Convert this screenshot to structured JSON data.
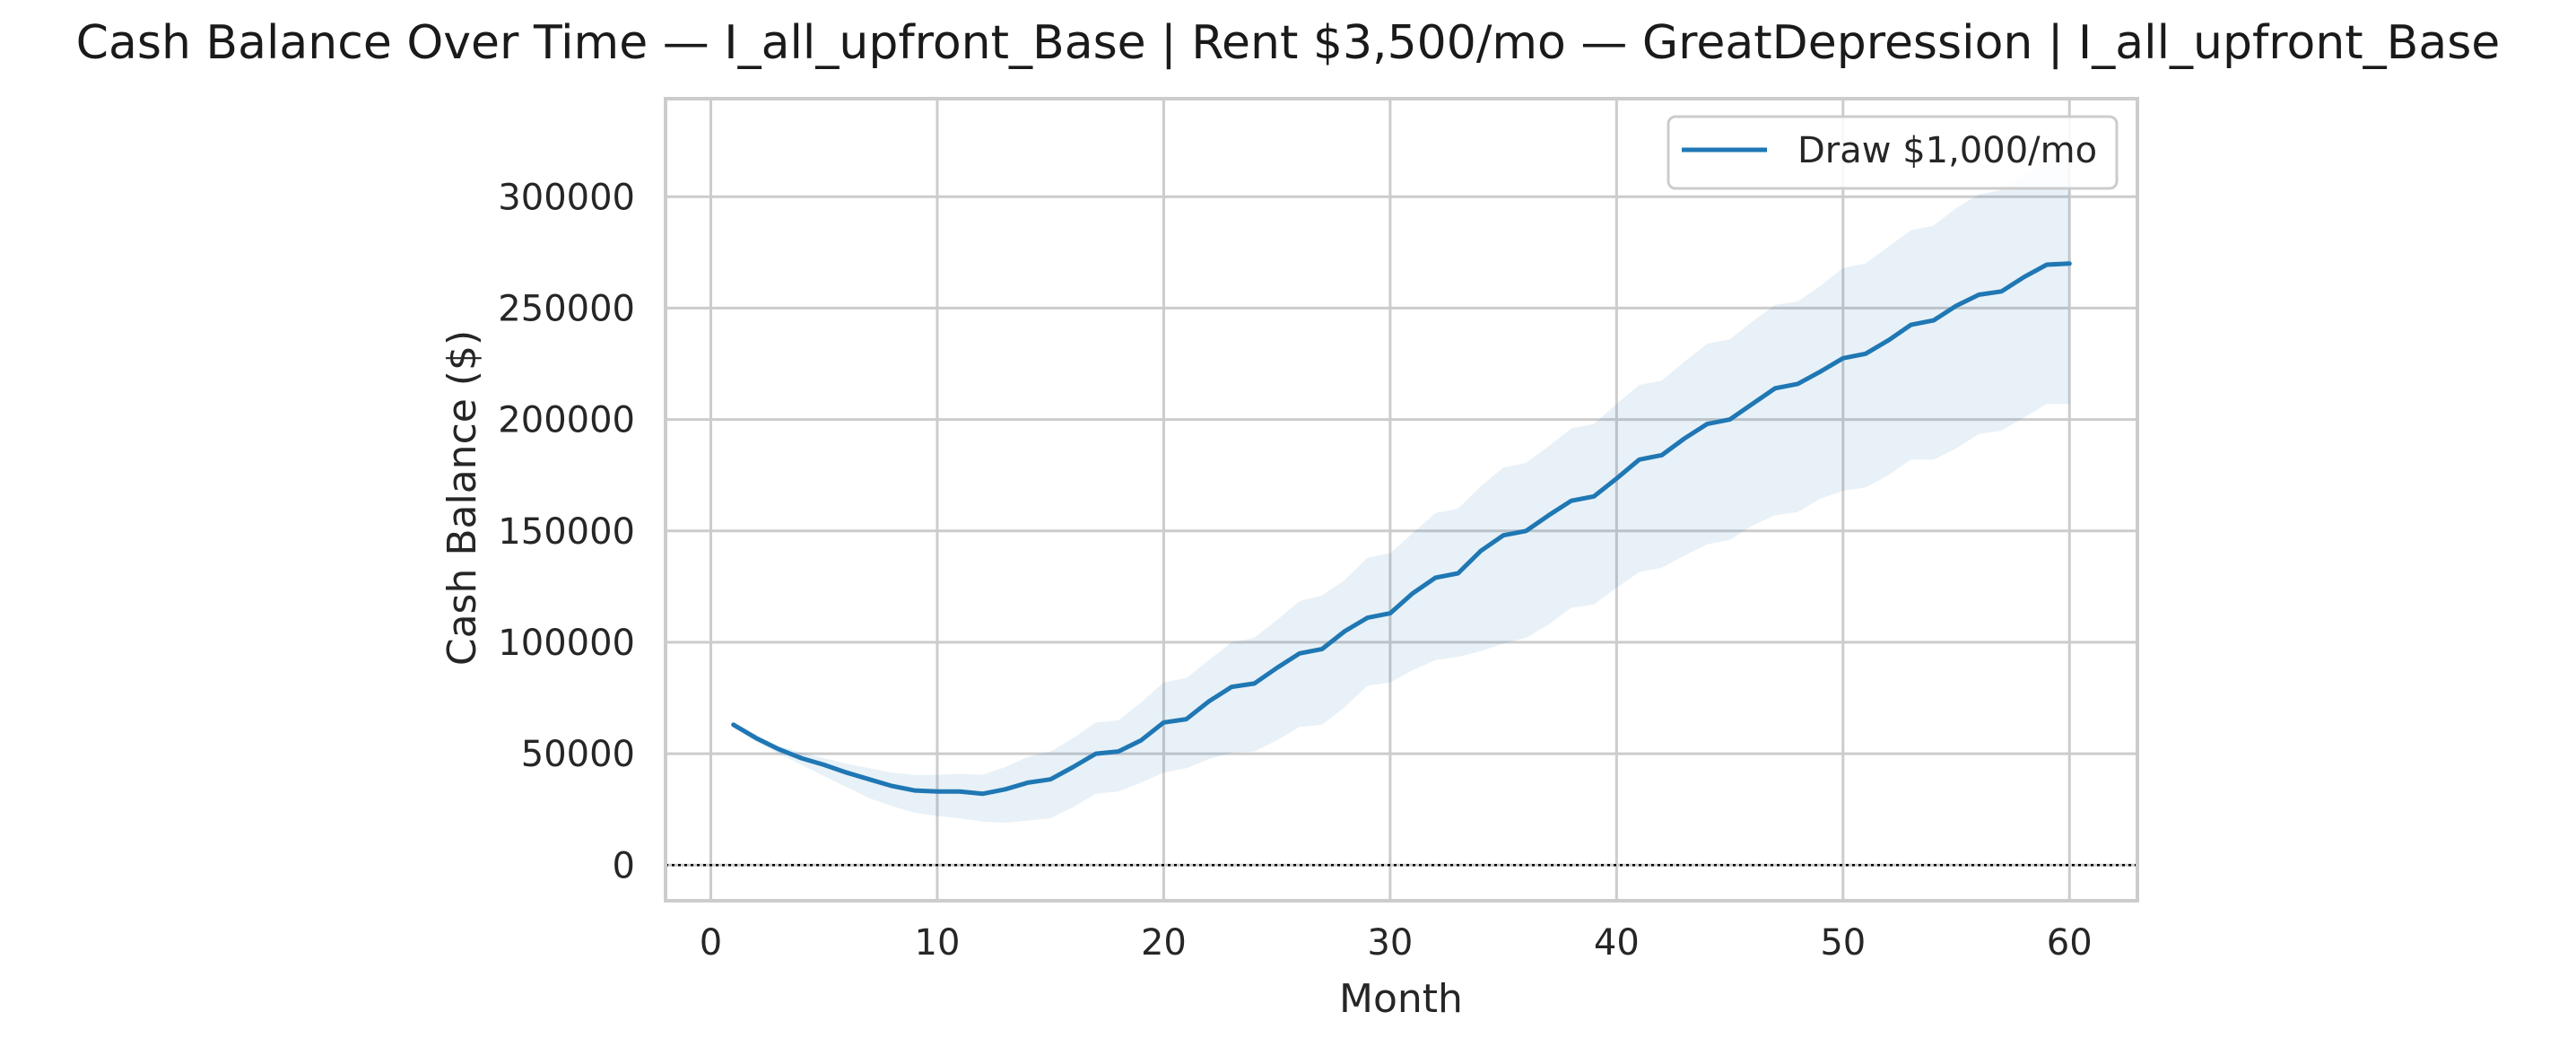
{
  "chart_data": {
    "type": "line",
    "title": "Cash Balance Over Time — I_all_upfront_Base | Rent $3,500/mo — GreatDepression | I_all_upfront_Base",
    "xlabel": "Month",
    "ylabel": "Cash Balance ($)",
    "xlim": [
      -2,
      63
    ],
    "ylim": [
      -16000,
      344000
    ],
    "xticks": [
      0,
      10,
      20,
      30,
      40,
      50,
      60
    ],
    "yticks": [
      0,
      50000,
      100000,
      150000,
      200000,
      250000,
      300000
    ],
    "grid": true,
    "legend_position": "top-right",
    "reference_line": {
      "y": 0,
      "style": "dotted",
      "color": "#000000"
    },
    "series": [
      {
        "name": "Draw $1,000/mo",
        "color": "#1f77b4",
        "band_color": "#1f77b4",
        "x": [
          1,
          2,
          3,
          4,
          5,
          6,
          7,
          8,
          9,
          10,
          11,
          12,
          13,
          14,
          15,
          16,
          17,
          18,
          19,
          20,
          21,
          22,
          23,
          24,
          25,
          26,
          27,
          28,
          29,
          30,
          31,
          32,
          33,
          34,
          35,
          36,
          37,
          38,
          39,
          40,
          41,
          42,
          43,
          44,
          45,
          46,
          47,
          48,
          49,
          50,
          51,
          52,
          53,
          54,
          55,
          56,
          57,
          58,
          59,
          60
        ],
        "values": [
          63000,
          57000,
          52000,
          48000,
          45000,
          41500,
          38500,
          35500,
          33500,
          33000,
          33000,
          32000,
          34000,
          37000,
          38500,
          44000,
          50000,
          51000,
          56000,
          64000,
          65500,
          73500,
          80000,
          81500,
          88500,
          95000,
          97000,
          105000,
          111000,
          113000,
          122000,
          129000,
          131000,
          141000,
          148000,
          150000,
          157000,
          163500,
          165500,
          173500,
          182000,
          184000,
          191500,
          198000,
          200000,
          207000,
          214000,
          216000,
          221500,
          227500,
          229500,
          235500,
          242500,
          244500,
          251000,
          256000,
          257500,
          264000,
          269500,
          270000
        ],
        "lower": [
          62000,
          55500,
          50000,
          45000,
          40000,
          35000,
          30000,
          26500,
          23500,
          22000,
          21000,
          19500,
          19000,
          20000,
          21000,
          26000,
          32000,
          33000,
          37000,
          41500,
          43500,
          47500,
          50500,
          51000,
          56000,
          62000,
          63000,
          71000,
          80500,
          82000,
          87500,
          92000,
          93500,
          96000,
          99500,
          102000,
          108000,
          115500,
          117000,
          124500,
          131500,
          133500,
          139000,
          144000,
          146000,
          152500,
          157000,
          158500,
          164500,
          168000,
          169500,
          175000,
          182000,
          182000,
          187000,
          193500,
          195000,
          201000,
          207000,
          207000
        ],
        "upper": [
          64000,
          58500,
          53500,
          50500,
          48000,
          45500,
          43500,
          41500,
          40500,
          40500,
          41000,
          40500,
          44000,
          48500,
          51000,
          57000,
          64000,
          65000,
          73000,
          82000,
          84000,
          92000,
          100000,
          102000,
          110000,
          118500,
          121000,
          128000,
          138000,
          140000,
          149000,
          158000,
          160000,
          170000,
          178500,
          180500,
          188000,
          196000,
          198000,
          207000,
          215500,
          217500,
          226000,
          234000,
          236000,
          244000,
          251500,
          253000,
          260000,
          268000,
          270000,
          277500,
          285000,
          287000,
          295000,
          301000,
          303000,
          310000,
          317000,
          318000
        ]
      }
    ]
  }
}
